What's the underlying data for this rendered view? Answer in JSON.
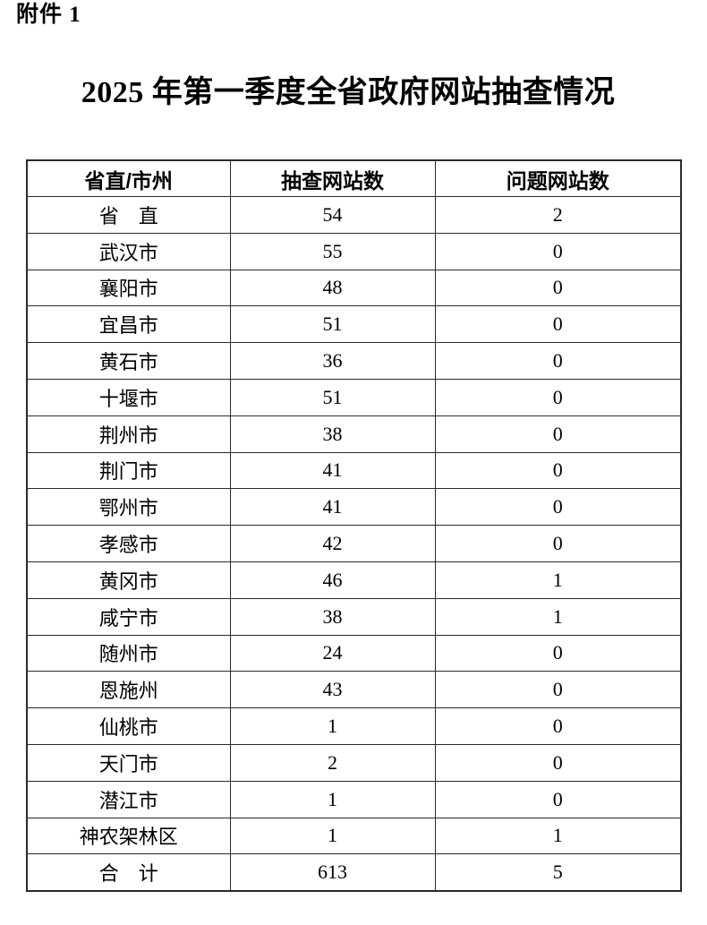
{
  "page": {
    "attachment_label": "附件 1",
    "title": "2025 年第一季度全省政府网站抽查情况"
  },
  "table": {
    "headers": [
      "省直/市州",
      "抽查网站数",
      "问题网站数"
    ],
    "rows": [
      [
        "省　直",
        "54",
        "2"
      ],
      [
        "武汉市",
        "55",
        "0"
      ],
      [
        "襄阳市",
        "48",
        "0"
      ],
      [
        "宜昌市",
        "51",
        "0"
      ],
      [
        "黄石市",
        "36",
        "0"
      ],
      [
        "十堰市",
        "51",
        "0"
      ],
      [
        "荆州市",
        "38",
        "0"
      ],
      [
        "荆门市",
        "41",
        "0"
      ],
      [
        "鄂州市",
        "41",
        "0"
      ],
      [
        "孝感市",
        "42",
        "0"
      ],
      [
        "黄冈市",
        "46",
        "1"
      ],
      [
        "咸宁市",
        "38",
        "1"
      ],
      [
        "随州市",
        "24",
        "0"
      ],
      [
        "恩施州",
        "43",
        "0"
      ],
      [
        "仙桃市",
        "1",
        "0"
      ],
      [
        "天门市",
        "2",
        "0"
      ],
      [
        "潜江市",
        "1",
        "0"
      ],
      [
        "神农架林区",
        "1",
        "1"
      ],
      [
        "合　计",
        "613",
        "5"
      ]
    ]
  }
}
